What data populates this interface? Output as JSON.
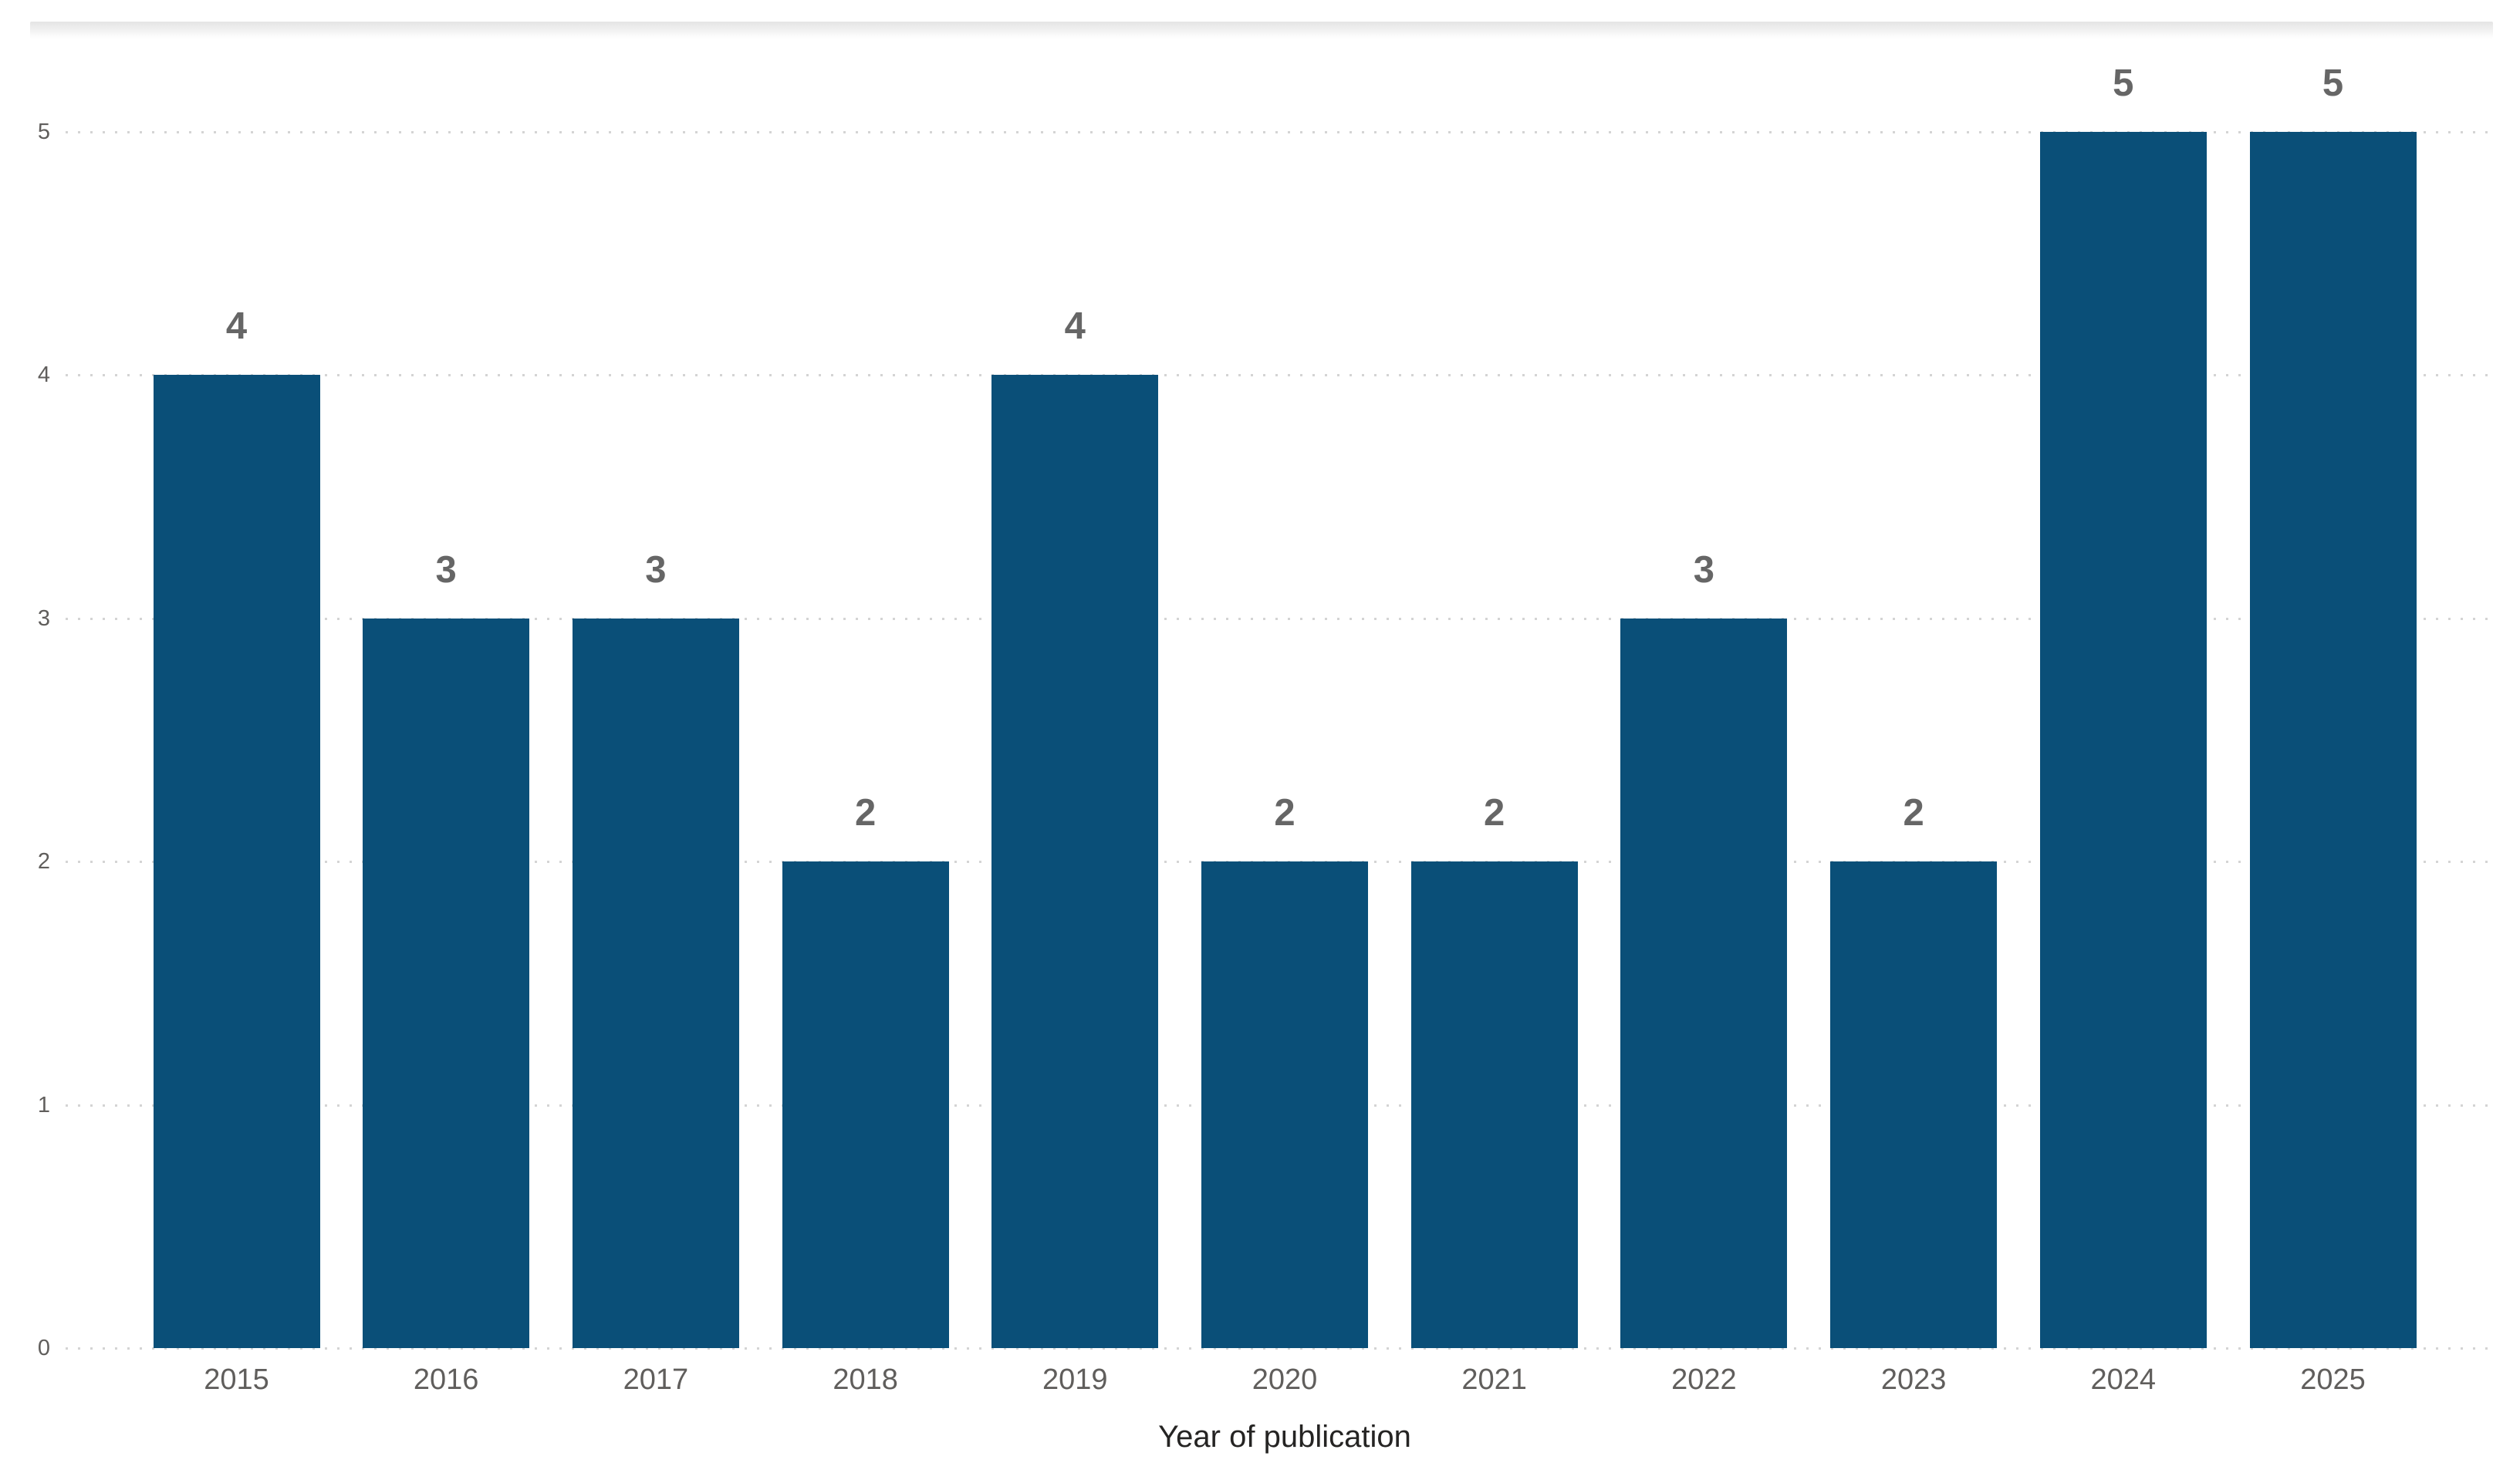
{
  "chart_data": {
    "type": "bar",
    "title": "",
    "categories": [
      "2015",
      "2016",
      "2017",
      "2018",
      "2019",
      "2020",
      "2021",
      "2022",
      "2023",
      "2024",
      "2025"
    ],
    "values": [
      4,
      3,
      3,
      2,
      4,
      2,
      2,
      3,
      2,
      5,
      5
    ],
    "data_labels": [
      "4",
      "3",
      "3",
      "2",
      "4",
      "2",
      "2",
      "3",
      "2",
      "5",
      "5"
    ],
    "xlabel": "Year of publication",
    "ylabel": "",
    "ylim": [
      0,
      5
    ],
    "yticks": [
      "0",
      "1",
      "2",
      "3",
      "4",
      "5"
    ],
    "grid": "horizontal-dotted",
    "legend": "none",
    "colors": {
      "bar_fill": "#0a4f78",
      "data_label": "#666666",
      "axis_tick": "#605e5c",
      "axis_title": "#252423",
      "gridline": "#d4d4d4"
    }
  }
}
